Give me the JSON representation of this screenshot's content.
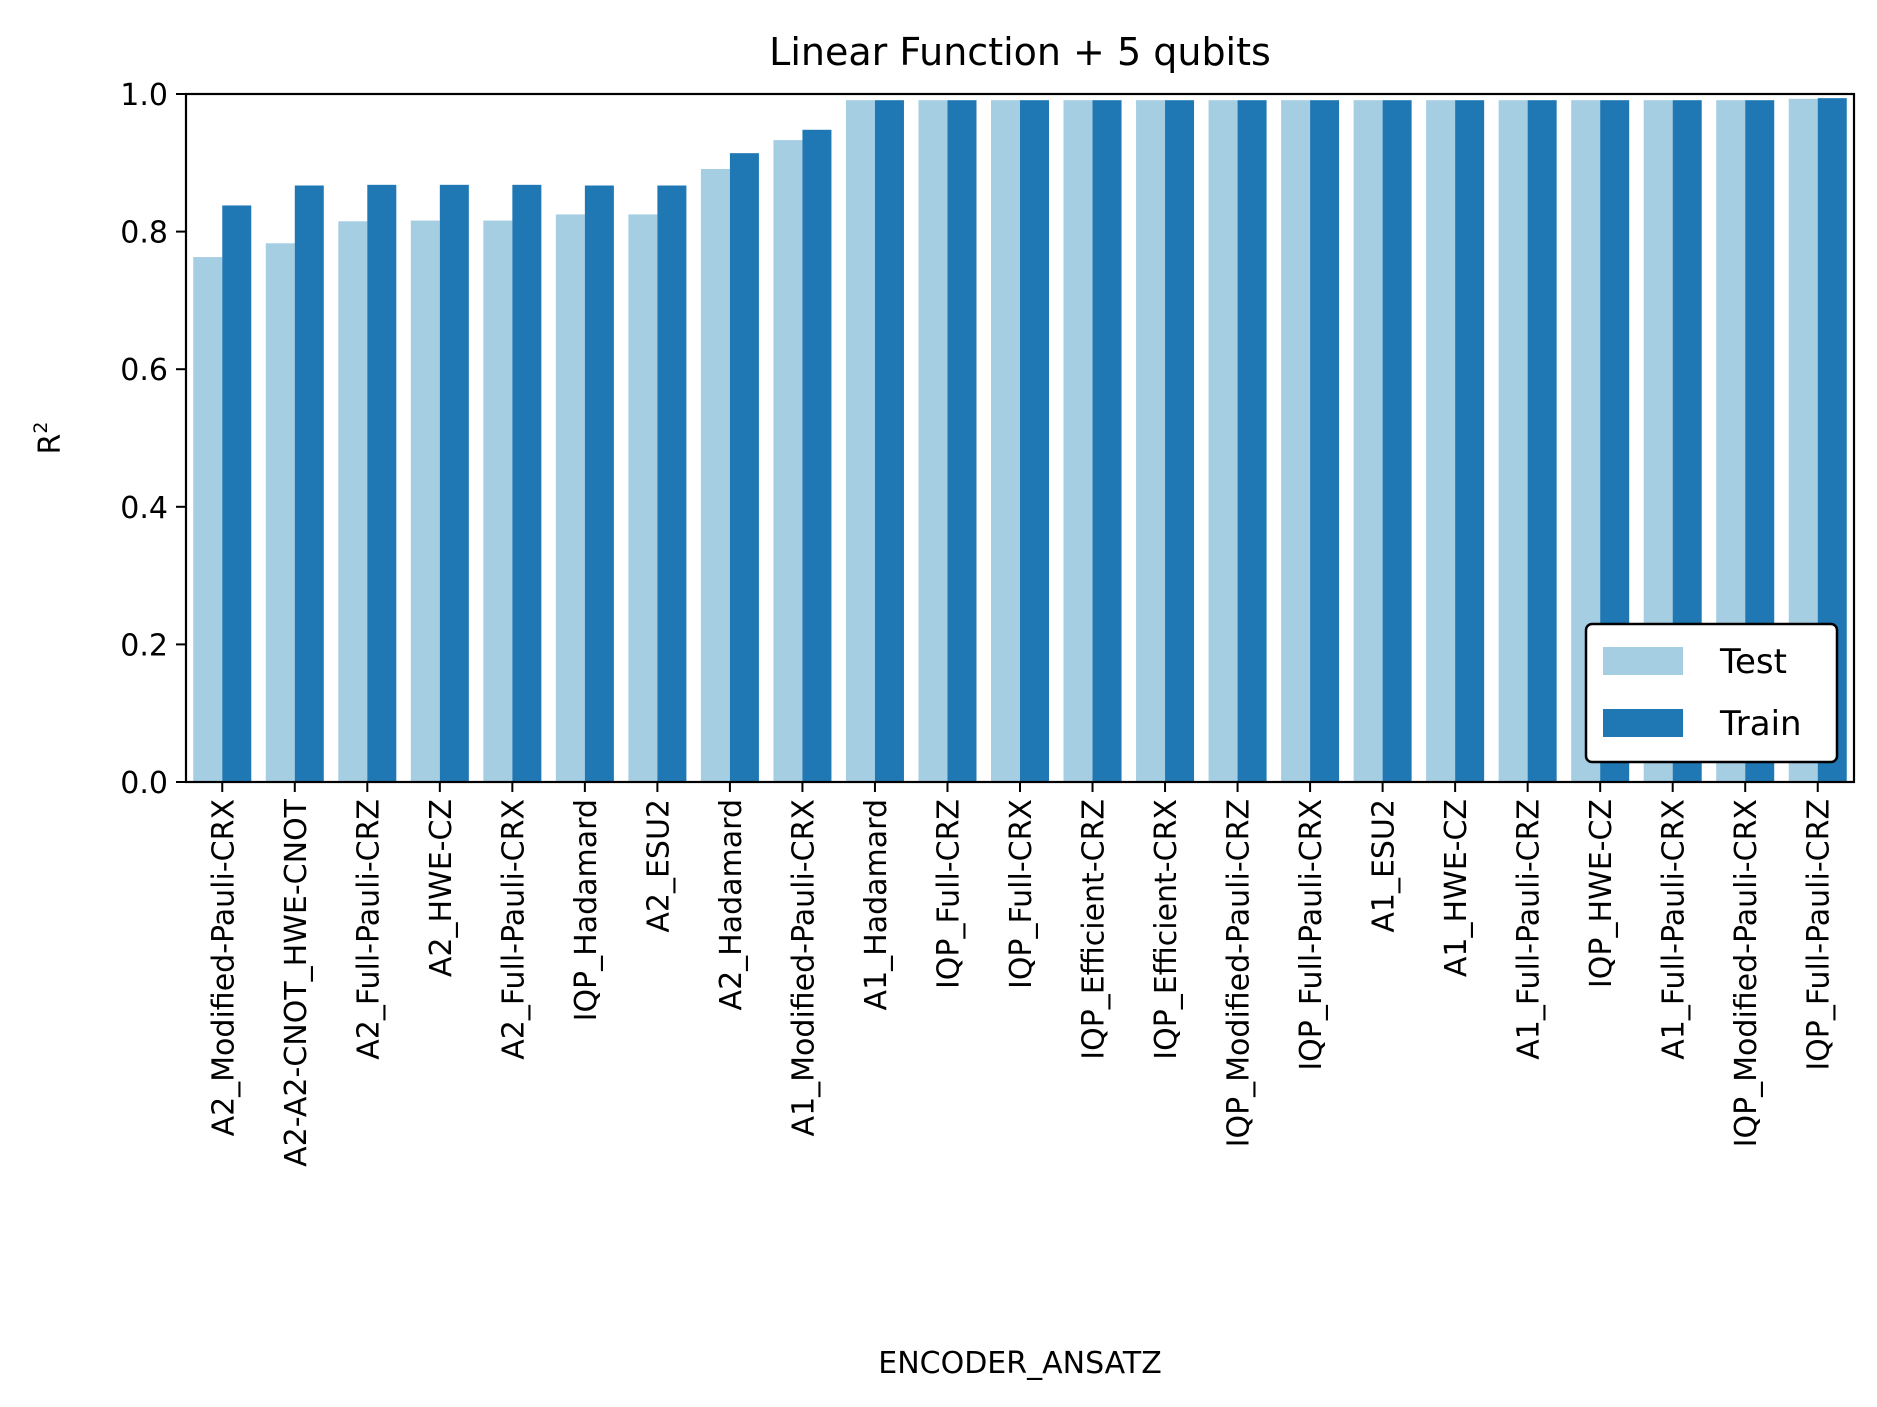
{
  "chart_data": {
    "type": "bar",
    "title": "Linear Function + 5 qubits",
    "xlabel": "ENCODER_ANSATZ",
    "ylabel_base": "R",
    "ylabel_superscript": "2",
    "ylim": [
      0,
      1.0
    ],
    "yticks": [
      "0.0",
      "0.2",
      "0.4",
      "0.6",
      "0.8",
      "1.0"
    ],
    "grid": false,
    "legend_position": "lower-right",
    "categories": [
      "A2_Modified-Pauli-CRX",
      "A2-A2-CNOT_HWE-CNOT",
      "A2_Full-Pauli-CRZ",
      "A2_HWE-CZ",
      "A2_Full-Pauli-CRX",
      "IQP_Hadamard",
      "A2_ESU2",
      "A2_Hadamard",
      "A1_Modified-Pauli-CRX",
      "A1_Hadamard",
      "IQP_Full-CRZ",
      "IQP_Full-CRX",
      "IQP_Efficient-CRZ",
      "IQP_Efficient-CRX",
      "IQP_Modified-Pauli-CRZ",
      "IQP_Full-Pauli-CRX",
      "A1_ESU2",
      "A1_HWE-CZ",
      "A1_Full-Pauli-CRZ",
      "IQP_HWE-CZ",
      "A1_Full-Pauli-CRX",
      "IQP_Modified-Pauli-CRX",
      "IQP_Full-Pauli-CRZ"
    ],
    "series": [
      {
        "name": "Test",
        "color": "#a6cee3",
        "values": [
          0.763,
          0.783,
          0.815,
          0.816,
          0.816,
          0.825,
          0.825,
          0.891,
          0.933,
          0.991,
          0.991,
          0.991,
          0.991,
          0.991,
          0.991,
          0.991,
          0.991,
          0.991,
          0.991,
          0.991,
          0.991,
          0.991,
          0.993
        ]
      },
      {
        "name": "Train",
        "color": "#1f78b4",
        "values": [
          0.838,
          0.867,
          0.868,
          0.868,
          0.868,
          0.867,
          0.867,
          0.914,
          0.948,
          0.991,
          0.991,
          0.991,
          0.991,
          0.991,
          0.991,
          0.991,
          0.991,
          0.991,
          0.991,
          0.991,
          0.991,
          0.991,
          0.994
        ]
      }
    ]
  }
}
